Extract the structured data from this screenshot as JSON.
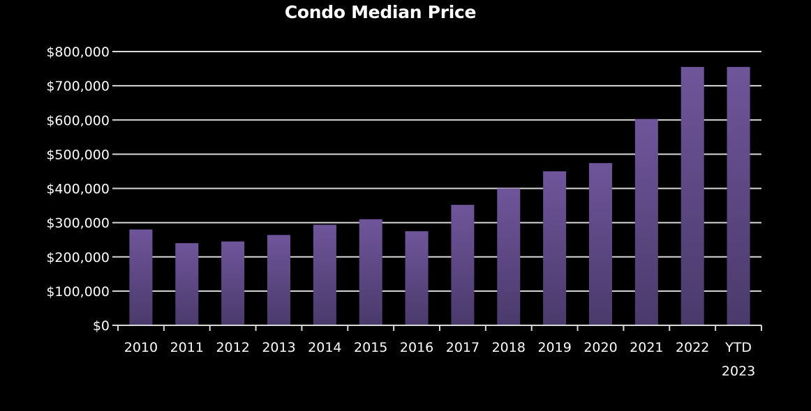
{
  "chart_data": {
    "type": "bar",
    "title": "Condo Median Price",
    "xlabel": "",
    "ylabel": "",
    "categories": [
      "2010",
      "2011",
      "2012",
      "2013",
      "2014",
      "2015",
      "2016",
      "2017",
      "2018",
      "2019",
      "2020",
      "2021",
      "2022",
      "YTD 2023"
    ],
    "values": [
      280000,
      240000,
      245000,
      264000,
      294000,
      310000,
      275000,
      352000,
      400000,
      450000,
      474000,
      603000,
      755000,
      755000
    ],
    "ylim": [
      0,
      800000
    ],
    "yticks": [
      "$0",
      "$100,000",
      "$200,000",
      "$300,000",
      "$400,000",
      "$500,000",
      "$600,000",
      "$700,000",
      "$800,000"
    ],
    "ytick_values": [
      0,
      100000,
      200000,
      300000,
      400000,
      500000,
      600000,
      700000,
      800000
    ],
    "grid": true,
    "legend": "none",
    "colors": {
      "background": "#000000",
      "bar_top": "#6f559a",
      "bar_bottom": "#4a3a6b",
      "grid": "#d9d9d9",
      "text": "#ffffff"
    }
  }
}
